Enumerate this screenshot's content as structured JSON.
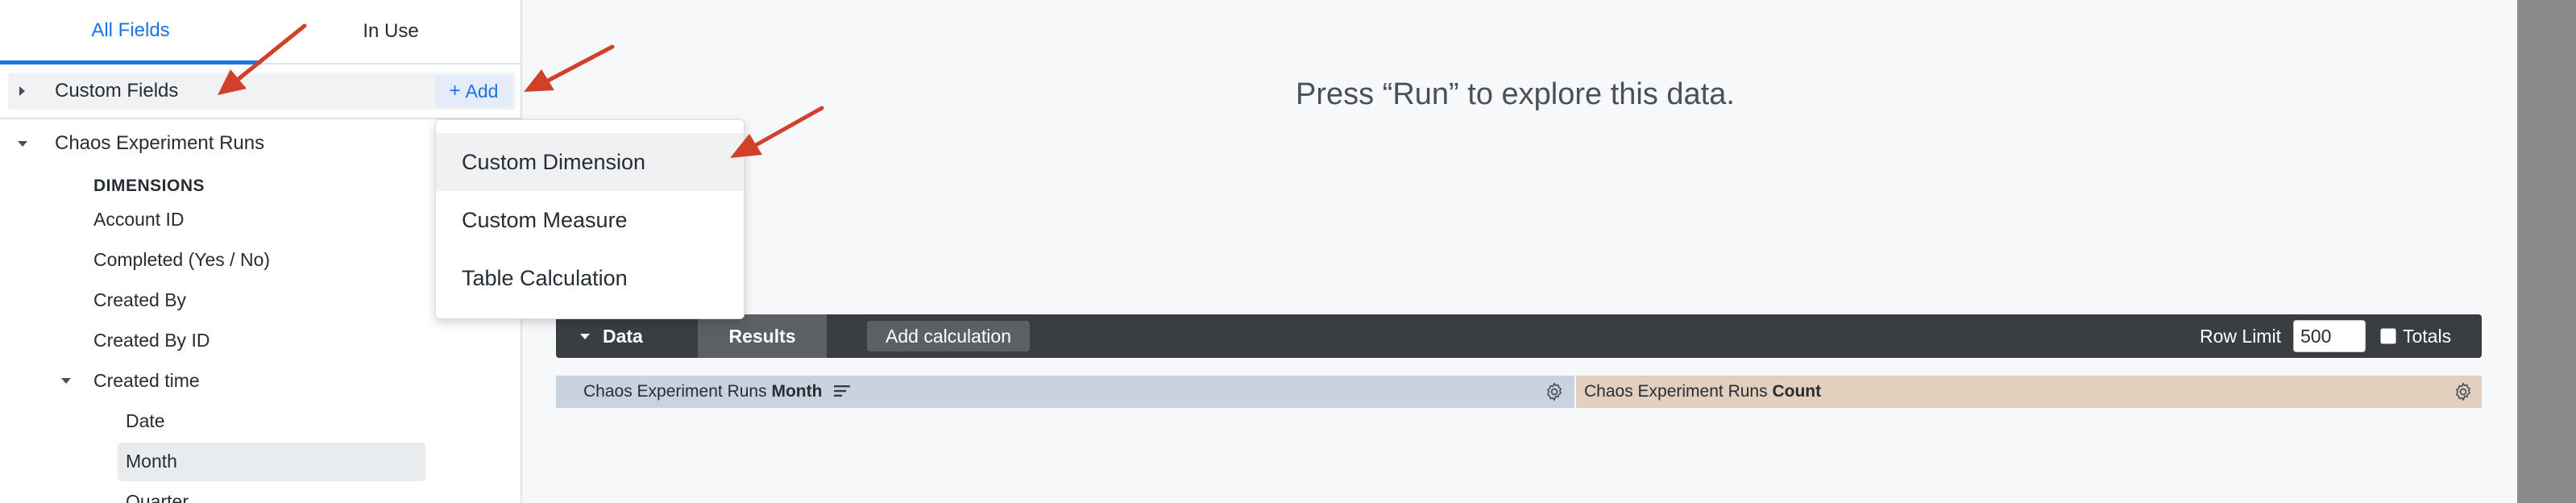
{
  "tabs": {
    "all_fields": "All Fields",
    "in_use": "In Use"
  },
  "custom_fields": {
    "label": "Custom Fields",
    "add_label": "Add",
    "add_glyph": "+"
  },
  "view": {
    "label": "Chaos Experiment Runs",
    "dimensions_header": "DIMENSIONS",
    "fields": [
      "Account ID",
      "Completed (Yes / No)",
      "Created By",
      "Created By ID",
      "Created time"
    ],
    "created_time_children": [
      "Date",
      "Month",
      "Quarter"
    ]
  },
  "main": {
    "prompt": "Press “Run” to explore this data."
  },
  "dropdown": {
    "items": [
      "Custom Dimension",
      "Custom Measure",
      "Table Calculation"
    ]
  },
  "toolbar": {
    "data_label": "Data",
    "results_label": "Results",
    "add_calculation_label": "Add calculation",
    "row_limit_label": "Row Limit",
    "row_limit_value": "500",
    "totals_label": "Totals"
  },
  "columns": {
    "month": {
      "prefix": "Chaos Experiment Runs",
      "bold": "Month"
    },
    "count": {
      "prefix": "Chaos Experiment Runs",
      "bold": "Count"
    }
  },
  "colors": {
    "accent": "#1a73e8",
    "arrow": "#d0402b",
    "dimension_header_bg": "#c9d3df",
    "measure_header_bg": "#e2cfbd",
    "toolbar_bg": "#3a3d41"
  },
  "icons": {
    "expand": "caret-right-icon",
    "collapse": "caret-down-icon",
    "settings": "gear-icon",
    "sort": "sort-icon",
    "add": "plus-icon"
  }
}
